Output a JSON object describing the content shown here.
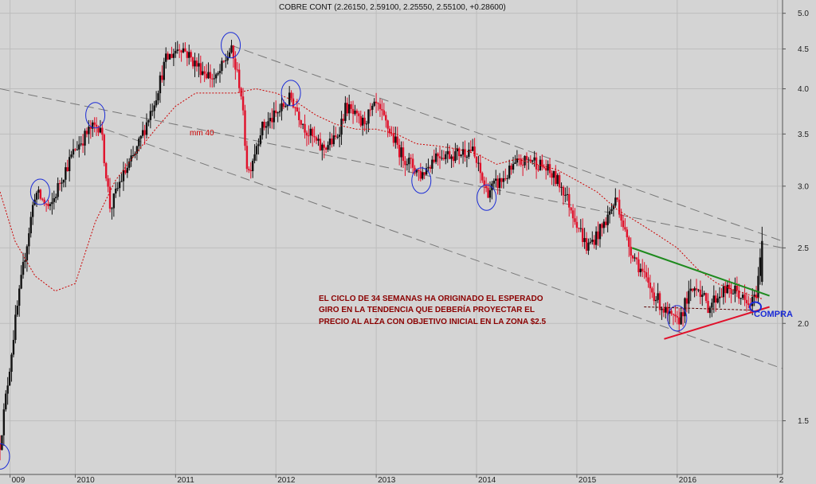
{
  "chart_data": {
    "type": "candlestick",
    "title": "COBRE CONT (2.26150, 2.59100, 2.25550, 2.55100, +0.28600)",
    "yscale": "log",
    "ylim": [
      1.28,
      5.2
    ],
    "y_ticks": [
      "5.0",
      "4.5",
      "4.0",
      "3.5",
      "3.0",
      "2.5",
      "2.0",
      "1.5"
    ],
    "y_tick_values": [
      5.0,
      4.5,
      4.0,
      3.5,
      3.0,
      2.5,
      2.0,
      1.5
    ],
    "xlim": [
      2009.25,
      2017.05
    ],
    "x_ticks": [
      "009",
      "2010",
      "2011",
      "2012",
      "2013",
      "2014",
      "2015",
      "2016",
      "2"
    ],
    "x_tick_values": [
      2009.35,
      2010.0,
      2011.0,
      2012.0,
      2013.0,
      2014.0,
      2015.0,
      2016.0,
      2017.0
    ],
    "grid": true,
    "price_path": [
      [
        2009.25,
        1.4
      ],
      [
        2009.4,
        2.0
      ],
      [
        2009.5,
        2.45
      ],
      [
        2009.6,
        2.95
      ],
      [
        2009.75,
        2.8
      ],
      [
        2009.85,
        3.05
      ],
      [
        2010.0,
        3.35
      ],
      [
        2010.15,
        3.55
      ],
      [
        2010.25,
        3.6
      ],
      [
        2010.35,
        2.8
      ],
      [
        2010.45,
        3.05
      ],
      [
        2010.6,
        3.3
      ],
      [
        2010.8,
        3.9
      ],
      [
        2010.9,
        4.35
      ],
      [
        2011.05,
        4.55
      ],
      [
        2011.2,
        4.3
      ],
      [
        2011.4,
        4.1
      ],
      [
        2011.55,
        4.5
      ],
      [
        2011.65,
        4.0
      ],
      [
        2011.72,
        3.1
      ],
      [
        2011.85,
        3.55
      ],
      [
        2012.0,
        3.7
      ],
      [
        2012.15,
        3.9
      ],
      [
        2012.3,
        3.55
      ],
      [
        2012.45,
        3.35
      ],
      [
        2012.6,
        3.45
      ],
      [
        2012.7,
        3.8
      ],
      [
        2012.85,
        3.6
      ],
      [
        2013.0,
        3.8
      ],
      [
        2013.1,
        3.6
      ],
      [
        2013.25,
        3.3
      ],
      [
        2013.45,
        3.1
      ],
      [
        2013.6,
        3.3
      ],
      [
        2013.8,
        3.3
      ],
      [
        2013.95,
        3.35
      ],
      [
        2014.1,
        2.95
      ],
      [
        2014.25,
        3.05
      ],
      [
        2014.4,
        3.2
      ],
      [
        2014.55,
        3.25
      ],
      [
        2014.7,
        3.15
      ],
      [
        2014.85,
        3.0
      ],
      [
        2015.0,
        2.7
      ],
      [
        2015.1,
        2.5
      ],
      [
        2015.25,
        2.65
      ],
      [
        2015.4,
        2.9
      ],
      [
        2015.5,
        2.55
      ],
      [
        2015.6,
        2.4
      ],
      [
        2015.7,
        2.25
      ],
      [
        2015.8,
        2.15
      ],
      [
        2015.9,
        2.05
      ],
      [
        2016.0,
        2.0
      ],
      [
        2016.1,
        2.15
      ],
      [
        2016.2,
        2.25
      ],
      [
        2016.3,
        2.1
      ],
      [
        2016.45,
        2.2
      ],
      [
        2016.6,
        2.2
      ],
      [
        2016.7,
        2.1
      ],
      [
        2016.78,
        2.15
      ],
      [
        2016.85,
        2.55
      ]
    ],
    "moving_average": {
      "label": "mm 40",
      "color": "#cc0000",
      "points": [
        [
          2009.25,
          2.95
        ],
        [
          2009.4,
          2.55
        ],
        [
          2009.6,
          2.3
        ],
        [
          2009.8,
          2.2
        ],
        [
          2010.0,
          2.25
        ],
        [
          2010.2,
          2.7
        ],
        [
          2010.4,
          3.05
        ],
        [
          2010.6,
          3.3
        ],
        [
          2010.8,
          3.55
        ],
        [
          2011.0,
          3.8
        ],
        [
          2011.2,
          3.95
        ],
        [
          2011.4,
          3.95
        ],
        [
          2011.6,
          3.95
        ],
        [
          2011.8,
          4.0
        ],
        [
          2012.0,
          3.95
        ],
        [
          2012.2,
          3.85
        ],
        [
          2012.4,
          3.7
        ],
        [
          2012.6,
          3.6
        ],
        [
          2012.8,
          3.55
        ],
        [
          2013.0,
          3.55
        ],
        [
          2013.2,
          3.5
        ],
        [
          2013.4,
          3.4
        ],
        [
          2013.6,
          3.38
        ],
        [
          2013.8,
          3.35
        ],
        [
          2014.0,
          3.3
        ],
        [
          2014.2,
          3.2
        ],
        [
          2014.4,
          3.25
        ],
        [
          2014.6,
          3.2
        ],
        [
          2014.8,
          3.15
        ],
        [
          2015.0,
          3.05
        ],
        [
          2015.2,
          2.95
        ],
        [
          2015.4,
          2.8
        ],
        [
          2015.6,
          2.7
        ],
        [
          2015.8,
          2.6
        ],
        [
          2016.0,
          2.5
        ],
        [
          2016.2,
          2.35
        ],
        [
          2016.4,
          2.25
        ],
        [
          2016.6,
          2.2
        ],
        [
          2016.85,
          2.15
        ]
      ]
    },
    "channel_lines": [
      {
        "style": "dashed",
        "color": "#777777",
        "from": [
          2009.25,
          4.0
        ],
        "to": [
          2017.05,
          2.5
        ]
      },
      {
        "style": "dashed",
        "color": "#777777",
        "from": [
          2011.55,
          4.55
        ],
        "to": [
          2017.05,
          2.55
        ]
      },
      {
        "style": "dashed",
        "color": "#777777",
        "from": [
          2010.3,
          3.55
        ],
        "to": [
          2017.05,
          1.75
        ]
      }
    ],
    "trend_lines": [
      {
        "name": "resistance",
        "color": "#1e8a1e",
        "from": [
          2015.55,
          2.5
        ],
        "to": [
          2016.92,
          2.17
        ]
      },
      {
        "name": "support",
        "color": "#e0102a",
        "from": [
          2015.87,
          1.91
        ],
        "to": [
          2016.92,
          2.1
        ]
      }
    ],
    "cycle_circles": [
      [
        2009.25,
        1.35
      ],
      [
        2009.65,
        2.95
      ],
      [
        2010.2,
        3.7
      ],
      [
        2011.55,
        4.55
      ],
      [
        2012.15,
        3.95
      ],
      [
        2013.45,
        3.05
      ],
      [
        2014.1,
        2.9
      ],
      [
        2016.0,
        2.03
      ],
      [
        2016.78,
        2.1
      ]
    ],
    "annotation": {
      "lines": [
        "EL CICLO DE 34 SEMANAS HA ORIGINADO EL ESPERADO",
        "GIRO EN LA TENDENCIA QUE DEBERÍA PROYECTAR EL",
        "PRECIO AL ALZA CON OBJETIVO INICIAL EN LA ZONA $2.5"
      ],
      "pointer_from": [
        2015.67,
        2.1
      ],
      "pointer_to": [
        2016.75,
        2.08
      ]
    },
    "buy_label": "COMPRA",
    "buy_point": [
      2016.78,
      2.02
    ]
  }
}
